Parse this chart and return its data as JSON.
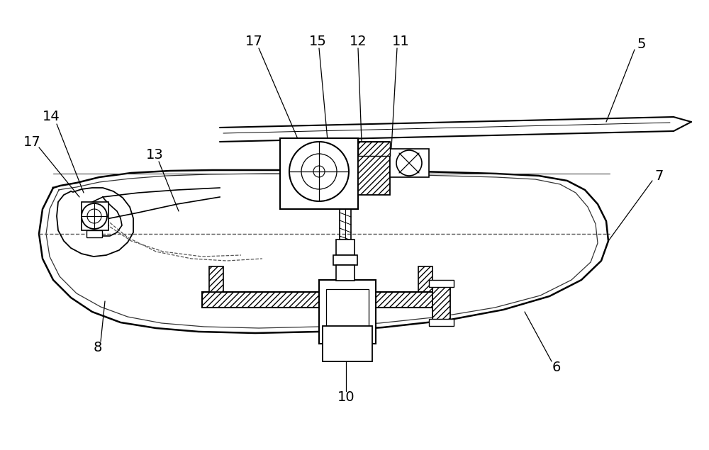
{
  "bg_color": "#ffffff",
  "fig_width": 10.0,
  "fig_height": 6.35
}
